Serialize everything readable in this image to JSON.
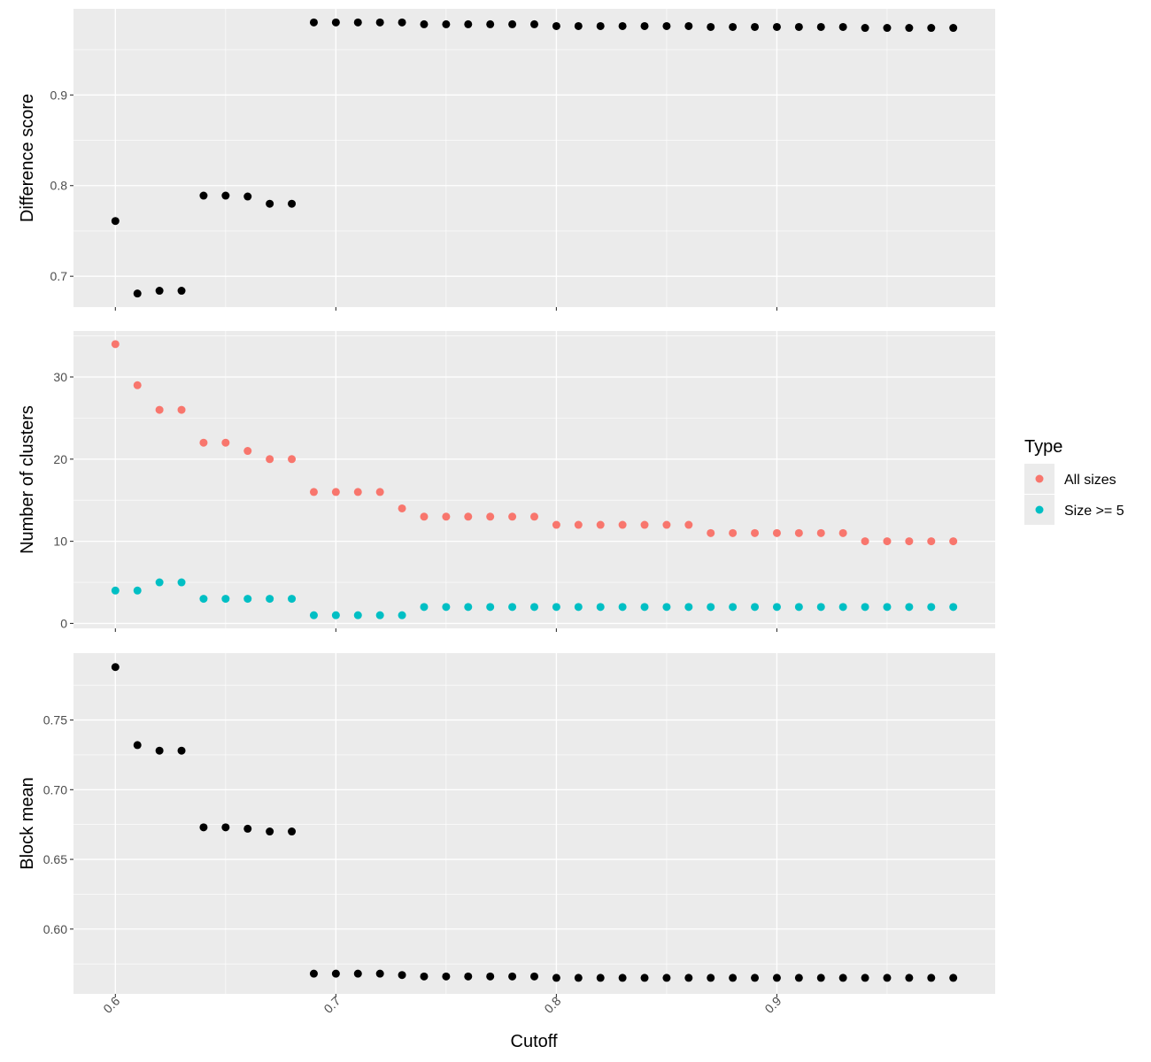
{
  "colors": {
    "panel_bg": "#ebebeb",
    "grid": "#ffffff",
    "tick": "#333333",
    "point_black": "#000000",
    "all_sizes": "#f8766d",
    "size_ge5": "#00bfc4"
  },
  "chart_data": {
    "type": "scatter",
    "layout": "three stacked panels sharing x axis",
    "xlabel": "Cutoff",
    "xlim": [
      0.581,
      0.999
    ],
    "xticks": [
      0.6,
      0.7,
      0.8,
      0.9
    ],
    "xtick_labels": [
      "0.6",
      "0.7",
      "0.8",
      "0.9"
    ],
    "x": [
      0.6,
      0.61,
      0.62,
      0.63,
      0.64,
      0.65,
      0.66,
      0.67,
      0.68,
      0.69,
      0.7,
      0.71,
      0.72,
      0.73,
      0.74,
      0.75,
      0.76,
      0.77,
      0.78,
      0.79,
      0.8,
      0.81,
      0.82,
      0.83,
      0.84,
      0.85,
      0.86,
      0.87,
      0.88,
      0.89,
      0.9,
      0.91,
      0.92,
      0.93,
      0.94,
      0.95,
      0.96,
      0.97,
      0.98
    ],
    "panels": [
      {
        "ylabel": "Difference score",
        "ylim": [
          0.666,
          0.995
        ],
        "yticks": [
          0.7,
          0.8,
          0.9
        ],
        "ytick_labels": [
          "0.7",
          "0.8",
          "0.9"
        ],
        "series": [
          {
            "color": "#000000",
            "values": [
              0.761,
              0.681,
              0.684,
              0.684,
              0.789,
              0.789,
              0.788,
              0.78,
              0.78,
              0.98,
              0.98,
              0.98,
              0.98,
              0.98,
              0.978,
              0.978,
              0.978,
              0.978,
              0.978,
              0.978,
              0.976,
              0.976,
              0.976,
              0.976,
              0.976,
              0.976,
              0.976,
              0.975,
              0.975,
              0.975,
              0.975,
              0.975,
              0.975,
              0.975,
              0.974,
              0.974,
              0.974,
              0.974,
              0.974
            ]
          }
        ]
      },
      {
        "ylabel": "Number of clusters",
        "ylim": [
          -0.6,
          35.6
        ],
        "yticks": [
          0,
          10,
          20,
          30
        ],
        "ytick_labels": [
          "0",
          "10",
          "20",
          "30"
        ],
        "series": [
          {
            "name": "All sizes",
            "color": "#f8766d",
            "values": [
              34,
              29,
              26,
              26,
              22,
              22,
              21,
              20,
              20,
              16,
              16,
              16,
              16,
              14,
              13,
              13,
              13,
              13,
              13,
              13,
              12,
              12,
              12,
              12,
              12,
              12,
              12,
              11,
              11,
              11,
              11,
              11,
              11,
              11,
              10,
              10,
              10,
              10,
              10
            ]
          },
          {
            "name": "Size >= 5",
            "color": "#00bfc4",
            "values": [
              4,
              4,
              5,
              5,
              3,
              3,
              3,
              3,
              3,
              1,
              1,
              1,
              1,
              1,
              2,
              2,
              2,
              2,
              2,
              2,
              2,
              2,
              2,
              2,
              2,
              2,
              2,
              2,
              2,
              2,
              2,
              2,
              2,
              2,
              2,
              2,
              2,
              2,
              2
            ]
          }
        ]
      },
      {
        "ylabel": "Block mean",
        "ylim": [
          0.5535,
          0.798
        ],
        "yticks": [
          0.6,
          0.65,
          0.7,
          0.75
        ],
        "ytick_labels": [
          "0.60",
          "0.65",
          "0.70",
          "0.75"
        ],
        "series": [
          {
            "color": "#000000",
            "values": [
              0.788,
              0.732,
              0.728,
              0.728,
              0.673,
              0.673,
              0.672,
              0.67,
              0.67,
              0.568,
              0.568,
              0.568,
              0.568,
              0.567,
              0.566,
              0.566,
              0.566,
              0.566,
              0.566,
              0.566,
              0.565,
              0.565,
              0.565,
              0.565,
              0.565,
              0.565,
              0.565,
              0.565,
              0.565,
              0.565,
              0.565,
              0.565,
              0.565,
              0.565,
              0.565,
              0.565,
              0.565,
              0.565,
              0.565
            ]
          }
        ]
      }
    ],
    "legend": {
      "title": "Type",
      "position": "right",
      "items": [
        "All sizes",
        "Size >= 5"
      ]
    },
    "grid": true
  }
}
